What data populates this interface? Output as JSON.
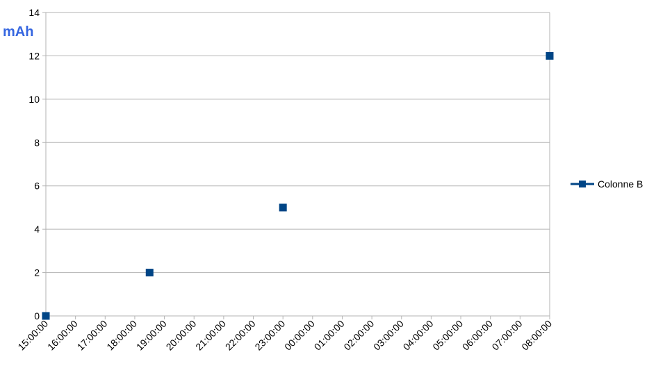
{
  "chart_data": {
    "type": "scatter",
    "y_label": "mAh",
    "x": [
      15,
      18.5,
      23,
      32
    ],
    "series": [
      {
        "name": "Colonne B",
        "color": "#004586",
        "values": [
          0,
          2,
          5,
          12
        ]
      }
    ],
    "xlim": [
      15,
      32
    ],
    "xticks": [
      {
        "value": 15,
        "label": "15:00:00"
      },
      {
        "value": 16,
        "label": "16:00:00"
      },
      {
        "value": 17,
        "label": "17:00:00"
      },
      {
        "value": 18,
        "label": "18:00:00"
      },
      {
        "value": 19,
        "label": "19:00:00"
      },
      {
        "value": 20,
        "label": "20:00:00"
      },
      {
        "value": 21,
        "label": "21:00:00"
      },
      {
        "value": 22,
        "label": "22:00:00"
      },
      {
        "value": 23,
        "label": "23:00:00"
      },
      {
        "value": 24,
        "label": "00:00:00"
      },
      {
        "value": 25,
        "label": "01:00:00"
      },
      {
        "value": 26,
        "label": "02:00:00"
      },
      {
        "value": 27,
        "label": "03:00:00"
      },
      {
        "value": 28,
        "label": "04:00:00"
      },
      {
        "value": 29,
        "label": "05:00:00"
      },
      {
        "value": 30,
        "label": "06:00:00"
      },
      {
        "value": 31,
        "label": "07:00:00"
      },
      {
        "value": 32,
        "label": "08:00:00"
      }
    ],
    "ylim": [
      0,
      14
    ],
    "yticks": [
      0,
      2,
      4,
      6,
      8,
      10,
      12,
      14
    ],
    "grid": true,
    "legend": "right"
  }
}
